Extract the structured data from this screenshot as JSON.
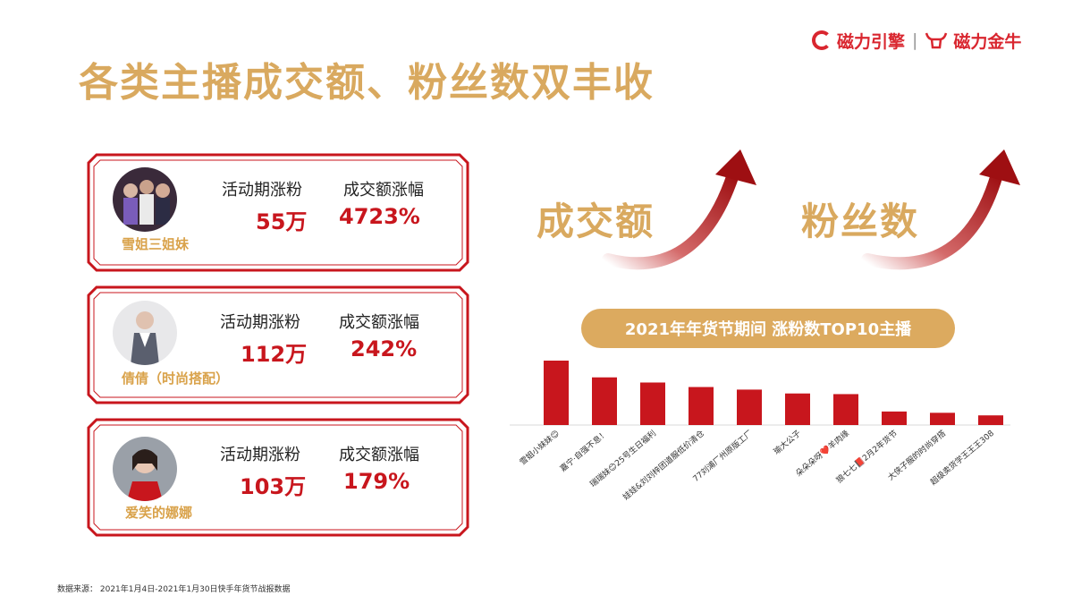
{
  "header": {
    "title": "各类主播成交额、粉丝数双丰收",
    "logo_left": "磁力引擎",
    "logo_sep": "|",
    "logo_right": "磁力金牛"
  },
  "cards": [
    {
      "name": "雪姐三姐妹",
      "fans_label": "活动期涨粉",
      "fans_value": "55万",
      "sales_label": "成交额涨幅",
      "sales_value": "4723%"
    },
    {
      "name": "倩倩（时尚搭配）",
      "fans_label": "活动期涨粉",
      "fans_value": "112万",
      "sales_label": "成交额涨幅",
      "sales_value": "242%"
    },
    {
      "name": "爱笑的娜娜",
      "fans_label": "活动期涨粉",
      "fans_value": "103万",
      "sales_label": "成交额涨幅",
      "sales_value": "179%"
    }
  ],
  "growth": {
    "left_word": "成交额",
    "right_word": "粉丝数"
  },
  "chart_title": "2021年年货节期间 涨粉数TOP10主播",
  "chart_data": {
    "type": "bar",
    "categories": [
      "雪姐小妹妹😊",
      "嘉宁·自强不息！",
      "瑞瑞妹😊25号生日福利",
      "娃娃&刘刘梓团道服低价清仓",
      "77刘浦厂州原版工厂",
      "瑜大公子",
      "朵朵朵呀❤️羊肉缘",
      "狼七七📕2月2年货节",
      "大侠子服的时尚穿搭",
      "超级卖货学王王王308"
    ],
    "values": [
      100,
      74,
      66,
      59,
      55,
      49,
      48,
      21,
      19,
      15
    ],
    "title": "2021年年货节期间 涨粉数TOP10主播",
    "xlabel": "",
    "ylabel": "",
    "ylim": [
      0,
      100
    ],
    "bar_color": "#c8161d"
  },
  "footnote": "数据来源：  2021年1月4日-2021年1月30日快手年货节战报数据"
}
